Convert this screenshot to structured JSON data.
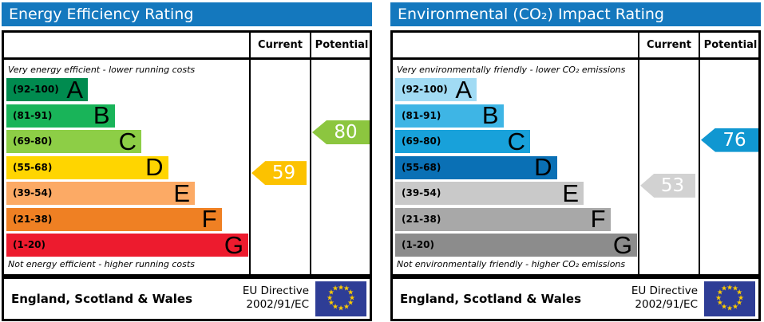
{
  "header_bg_color": "#1478be",
  "chart_data": [
    {
      "type": "bar",
      "variant": "epc-rating-graph",
      "title": "Energy Efficiency Rating",
      "columns": [
        "Current",
        "Potential"
      ],
      "top_note": "Very energy efficient - lower running costs",
      "bottom_note": "Not energy efficient - higher running costs",
      "bands": [
        {
          "letter": "A",
          "range_label": "(92-100)",
          "min": 92,
          "max": 100,
          "color": "#008b4f"
        },
        {
          "letter": "B",
          "range_label": "(81-91)",
          "min": 81,
          "max": 91,
          "color": "#19b459"
        },
        {
          "letter": "C",
          "range_label": "(69-80)",
          "min": 69,
          "max": 80,
          "color": "#8dce46"
        },
        {
          "letter": "D",
          "range_label": "(55-68)",
          "min": 55,
          "max": 68,
          "color": "#ffd500"
        },
        {
          "letter": "E",
          "range_label": "(39-54)",
          "min": 39,
          "max": 54,
          "color": "#fcaa65"
        },
        {
          "letter": "F",
          "range_label": "(21-38)",
          "min": 21,
          "max": 38,
          "color": "#ef8023"
        },
        {
          "letter": "G",
          "range_label": "(1-20)",
          "min": 1,
          "max": 20,
          "color": "#ed1b2e"
        }
      ],
      "current": {
        "value": 59,
        "band": "D",
        "arrow_color": "#fcc200"
      },
      "potential": {
        "value": 80,
        "band": "C",
        "arrow_color": "#8cc63f"
      }
    },
    {
      "type": "bar",
      "variant": "epc-rating-graph",
      "title": "Environmental (CO₂) Impact Rating",
      "columns": [
        "Current",
        "Potential"
      ],
      "top_note": "Very environmentally friendly - lower CO₂ emissions",
      "bottom_note": "Not environmentally friendly - higher CO₂ emissions",
      "bands": [
        {
          "letter": "A",
          "range_label": "(92-100)",
          "min": 92,
          "max": 100,
          "color": "#a1dbf4"
        },
        {
          "letter": "B",
          "range_label": "(81-91)",
          "min": 81,
          "max": 91,
          "color": "#3eb5e5"
        },
        {
          "letter": "C",
          "range_label": "(69-80)",
          "min": 69,
          "max": 80,
          "color": "#18a1da"
        },
        {
          "letter": "D",
          "range_label": "(55-68)",
          "min": 55,
          "max": 68,
          "color": "#0a70b5"
        },
        {
          "letter": "E",
          "range_label": "(39-54)",
          "min": 39,
          "max": 54,
          "color": "#c9c9c9"
        },
        {
          "letter": "F",
          "range_label": "(21-38)",
          "min": 21,
          "max": 38,
          "color": "#a8a8a8"
        },
        {
          "letter": "G",
          "range_label": "(1-20)",
          "min": 1,
          "max": 20,
          "color": "#8c8c8c"
        }
      ],
      "current": {
        "value": 53,
        "band": "E",
        "arrow_color": "#d2d2d2"
      },
      "potential": {
        "value": 76,
        "band": "C",
        "arrow_color": "#1097d1"
      }
    }
  ],
  "footer": {
    "region": "England, Scotland & Wales",
    "directive": [
      "EU Directive",
      "2002/91/EC"
    ],
    "eu_flag": {
      "background": "#2e3d96",
      "star_color": "#ffcc00",
      "star_count": 12
    }
  }
}
